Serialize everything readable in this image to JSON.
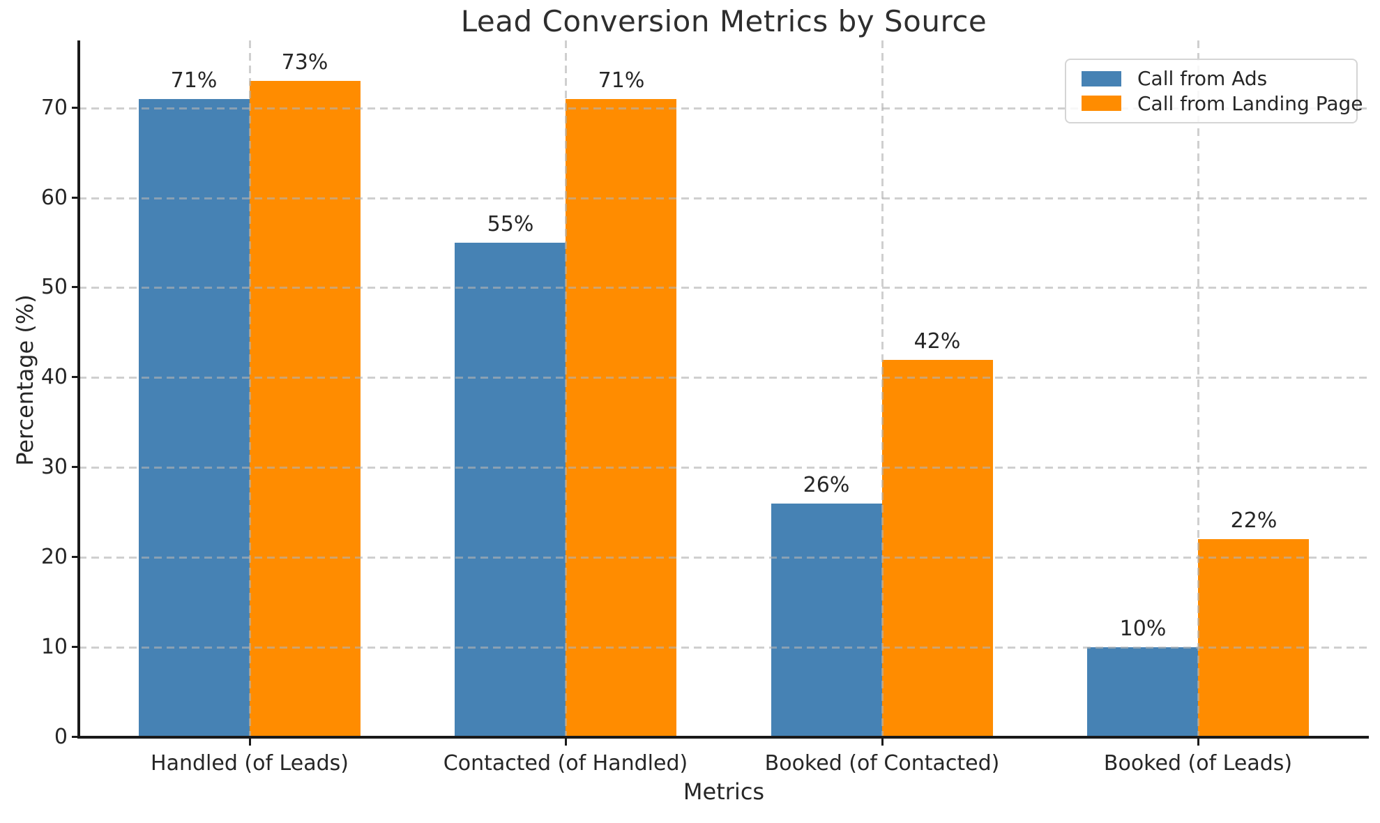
{
  "chart_data": {
    "type": "bar",
    "title": "Lead Conversion Metrics by Source",
    "xlabel": "Metrics",
    "ylabel": "Percentage (%)",
    "categories": [
      "Handled (of Leads)",
      "Contacted (of Handled)",
      "Booked (of Contacted)",
      "Booked (of Leads)"
    ],
    "series": [
      {
        "name": "Call from Ads",
        "color": "#4682B4",
        "values": [
          71,
          55,
          26,
          10
        ]
      },
      {
        "name": "Call from Landing Page",
        "color": "#FF8C00",
        "values": [
          73,
          71,
          42,
          22
        ]
      }
    ],
    "value_label_suffix": "%",
    "yticks": [
      0,
      10,
      20,
      30,
      40,
      50,
      60,
      70
    ],
    "ylim": [
      0,
      77.5
    ],
    "xlim": [
      -0.54,
      3.54
    ],
    "bar_width": 0.35,
    "grid": {
      "style": "dashed",
      "color": "#c4c4c4",
      "on": true,
      "above_bars": true
    },
    "legend": {
      "position": "upper right"
    },
    "spines": {
      "left": true,
      "bottom": true,
      "top": false,
      "right": false
    }
  }
}
